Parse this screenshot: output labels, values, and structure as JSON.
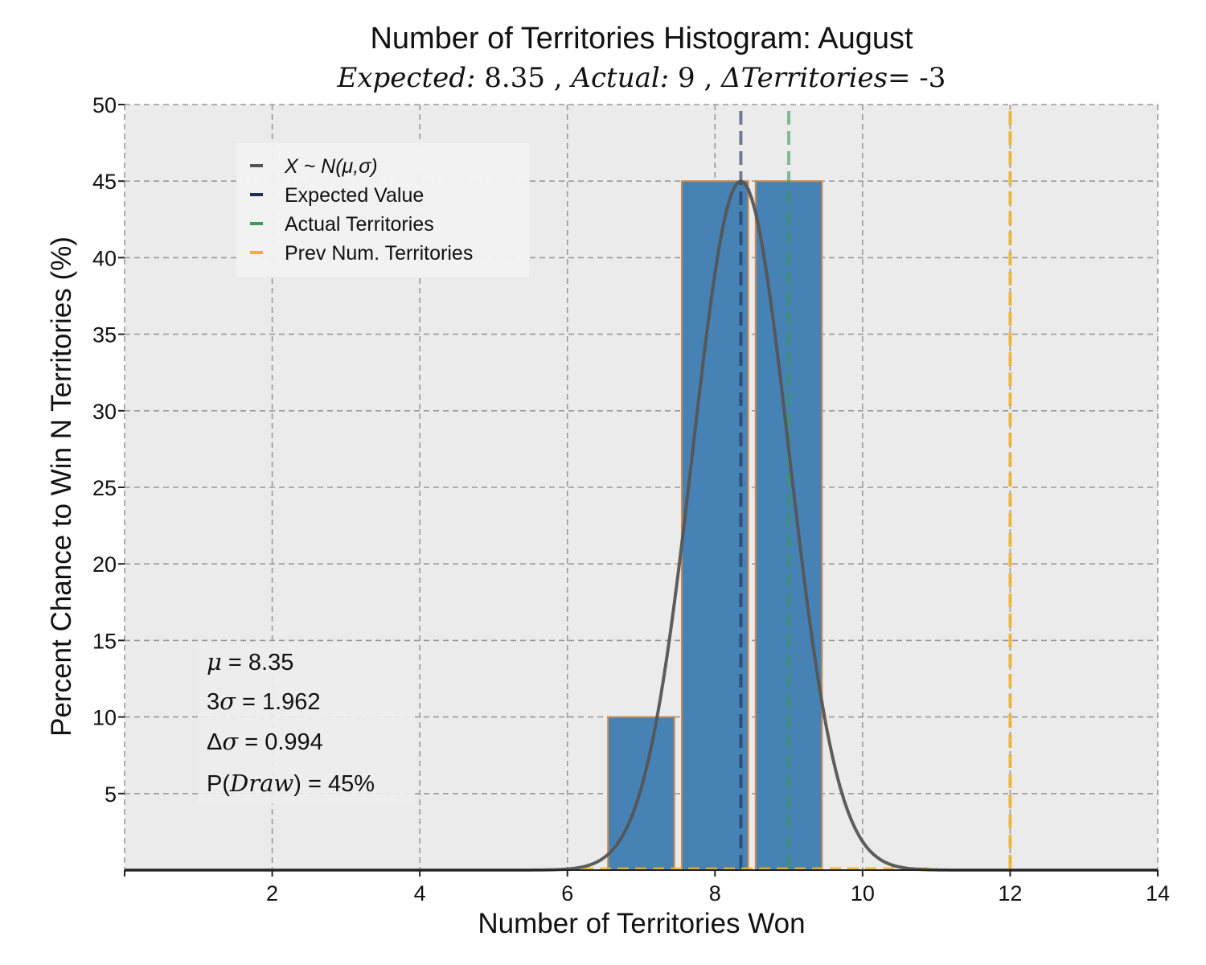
{
  "chart_data": {
    "type": "bar",
    "title": "Number of Territories Histogram: August",
    "subtitle": {
      "expected_label": "Expected:",
      "expected_value": "8.35",
      "actual_label": "Actual:",
      "actual_value": "9",
      "delta_label": "ΔTerritories",
      "delta_value": "= -3",
      "separator": " , "
    },
    "xlabel": "Number of Territories Won",
    "ylabel": "Percent Chance to Win N Territories (%)",
    "xlim": [
      0,
      14
    ],
    "ylim": [
      0,
      50
    ],
    "xticks": [
      2,
      4,
      6,
      8,
      10,
      12,
      14
    ],
    "yticks": [
      5,
      10,
      15,
      20,
      25,
      30,
      35,
      40,
      45,
      50
    ],
    "grid": true,
    "bars": [
      {
        "x": 7,
        "value": 10
      },
      {
        "x": 8,
        "value": 45
      },
      {
        "x": 9,
        "value": 45
      }
    ],
    "normal_curve": {
      "name": "X ~ N(μ,σ)",
      "mean": 8.35,
      "peak": 45,
      "sigma": 0.654,
      "color": "#555555"
    },
    "vlines": [
      {
        "name": "Expected Value",
        "x": 8.35,
        "color": "#1f2e55"
      },
      {
        "name": "Actual Territories",
        "x": 9,
        "color": "#3a9a5a"
      },
      {
        "name": "Prev Num. Territories",
        "x": 12,
        "color": "#f5b120"
      }
    ],
    "legend_position": "upper-left",
    "legend": [
      {
        "label": "X ~ N(μ,σ)",
        "color": "#555555"
      },
      {
        "label": "Expected Value",
        "color": "#1f2e55"
      },
      {
        "label": "Actual Territories",
        "color": "#3a9a5a"
      },
      {
        "label": "Prev Num. Territories",
        "color": "#f5b120"
      }
    ],
    "stats": {
      "mu": {
        "symbol": "μ",
        "text": " = 8.35"
      },
      "three_sigma": {
        "prefix": "3",
        "symbol": "σ",
        "text": " = 1.962"
      },
      "delta_sigma": {
        "prefix": "Δ",
        "symbol": "σ",
        "text": " = 0.994"
      },
      "p_draw": {
        "prefix": "P(",
        "symbol": "Draw",
        "text": ") = 45%"
      }
    },
    "colors": {
      "bar_fill": "#4682b4",
      "bar_edge": "#cd8a4c",
      "plot_bg": "#ebebeb",
      "grid": "#9a9a9a"
    }
  }
}
